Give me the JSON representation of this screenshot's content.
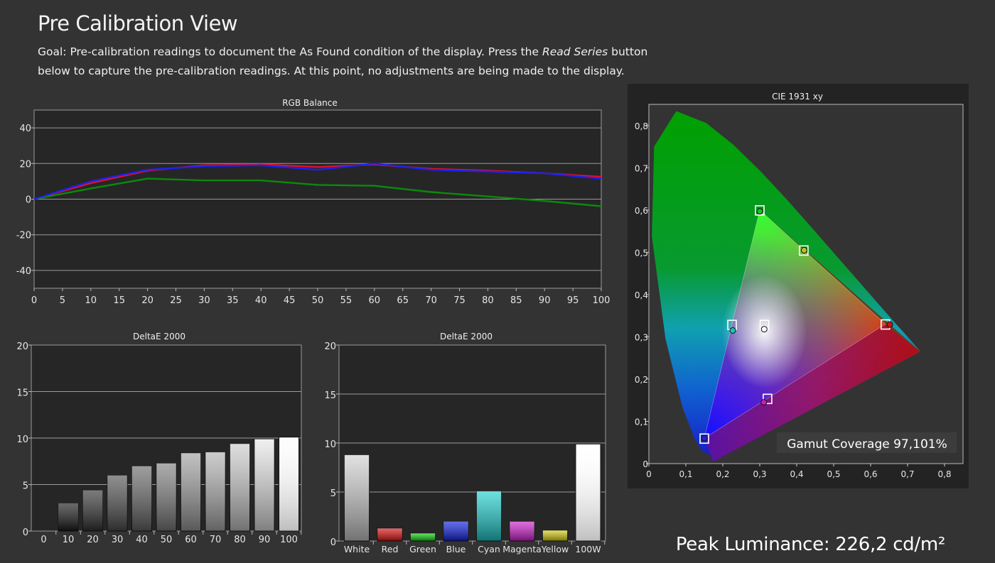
{
  "page": {
    "title": "Pre Calibration View",
    "goal_prefix": "Goal: Pre-calibration readings to document the As Found condition of the display. Press the ",
    "goal_emphasis": "Read Series",
    "goal_suffix": " button below to capture the pre-calibration readings. At this point, no adjustments are being made to the display.",
    "peak_label": "Peak Luminance: 226,2 cd/m²"
  },
  "colors": {
    "background": "#333333",
    "plot_background": "#262626",
    "red_series": "#e0102a",
    "green_series": "#0b8a0b",
    "blue_series": "#2020ee"
  },
  "chart_data": [
    {
      "type": "line",
      "title": "RGB Balance",
      "x": [
        0,
        10,
        20,
        30,
        40,
        50,
        60,
        70,
        80,
        90,
        100
      ],
      "xticks": [
        0,
        5,
        10,
        15,
        20,
        25,
        30,
        35,
        40,
        45,
        50,
        55,
        60,
        65,
        70,
        75,
        80,
        85,
        90,
        95,
        100
      ],
      "yticks": [
        40,
        20,
        0,
        -20,
        -40
      ],
      "xlim": [
        0,
        100
      ],
      "ylim": [
        -50,
        50
      ],
      "grid": true,
      "series": [
        {
          "color": "#e0102a",
          "values": [
            0,
            9,
            16,
            19,
            19.5,
            18,
            19.5,
            17,
            16,
            14.5,
            12.5
          ]
        },
        {
          "color": "#0b8a0b",
          "values": [
            0,
            6,
            11.5,
            10.5,
            10.5,
            8,
            7.5,
            4,
            1.5,
            -1,
            -4
          ]
        },
        {
          "color": "#2020ee",
          "values": [
            0,
            10,
            16.5,
            18.5,
            19,
            16.5,
            20,
            16.5,
            15.5,
            14.5,
            11.5
          ]
        }
      ]
    },
    {
      "type": "bar",
      "title": "DeltaE 2000",
      "categories": [
        "0",
        "10",
        "20",
        "30",
        "40",
        "50",
        "60",
        "70",
        "80",
        "90",
        "100"
      ],
      "values": [
        0,
        3,
        4.4,
        6,
        7,
        7.3,
        8.4,
        8.5,
        9.4,
        9.9,
        10.1
      ],
      "yticks": [
        20,
        15,
        10,
        5,
        0
      ],
      "ylim": [
        0,
        20
      ],
      "grid": true
    },
    {
      "type": "bar",
      "title": "DeltaE 2000",
      "categories": [
        "White",
        "Red",
        "Green",
        "Blue",
        "Cyan",
        "Magenta",
        "Yellow",
        "100W"
      ],
      "values": [
        8.8,
        1.3,
        0.8,
        2,
        5.1,
        2,
        1.1,
        9.9
      ],
      "colors": [
        "#d0d0d0",
        "#e01010",
        "#10d010",
        "#1020e0",
        "#20d0d0",
        "#d020d0",
        "#d8d010",
        "#ffffff"
      ],
      "yticks": [
        20,
        15,
        10,
        5,
        0
      ],
      "ylim": [
        0,
        20
      ],
      "grid": true
    },
    {
      "type": "scatter",
      "title": "CIE 1931 xy",
      "xlim": [
        0,
        0.85
      ],
      "ylim": [
        0,
        0.85
      ],
      "xticks": [
        "0",
        "0,1",
        "0,2",
        "0,3",
        "0,4",
        "0,5",
        "0,6",
        "0,7",
        "0,8"
      ],
      "yticks": [
        "0,8",
        "0,7",
        "0,6",
        "0,5",
        "0,4",
        "0,3",
        "0,2",
        "0,1",
        "0"
      ],
      "targets": [
        {
          "x": 0.64,
          "y": 0.33
        },
        {
          "x": 0.3,
          "y": 0.6
        },
        {
          "x": 0.15,
          "y": 0.06
        },
        {
          "x": 0.225,
          "y": 0.329
        },
        {
          "x": 0.321,
          "y": 0.154
        },
        {
          "x": 0.419,
          "y": 0.505
        },
        {
          "x": 0.3127,
          "y": 0.329
        }
      ],
      "measured": [
        {
          "x": 0.652,
          "y": 0.329,
          "color": "#d01010"
        },
        {
          "x": 0.3,
          "y": 0.597,
          "color": "#20c020"
        },
        {
          "x": 0.15,
          "y": 0.06,
          "color": "#2020e0"
        },
        {
          "x": 0.227,
          "y": 0.315,
          "color": "#20c0c0"
        },
        {
          "x": 0.311,
          "y": 0.145,
          "color": "#c020c0"
        },
        {
          "x": 0.42,
          "y": 0.505,
          "color": "#c0c020"
        },
        {
          "x": 0.312,
          "y": 0.318,
          "color": "#ffffff"
        }
      ],
      "gamut_label": "Gamut Coverage 97,101%"
    }
  ]
}
